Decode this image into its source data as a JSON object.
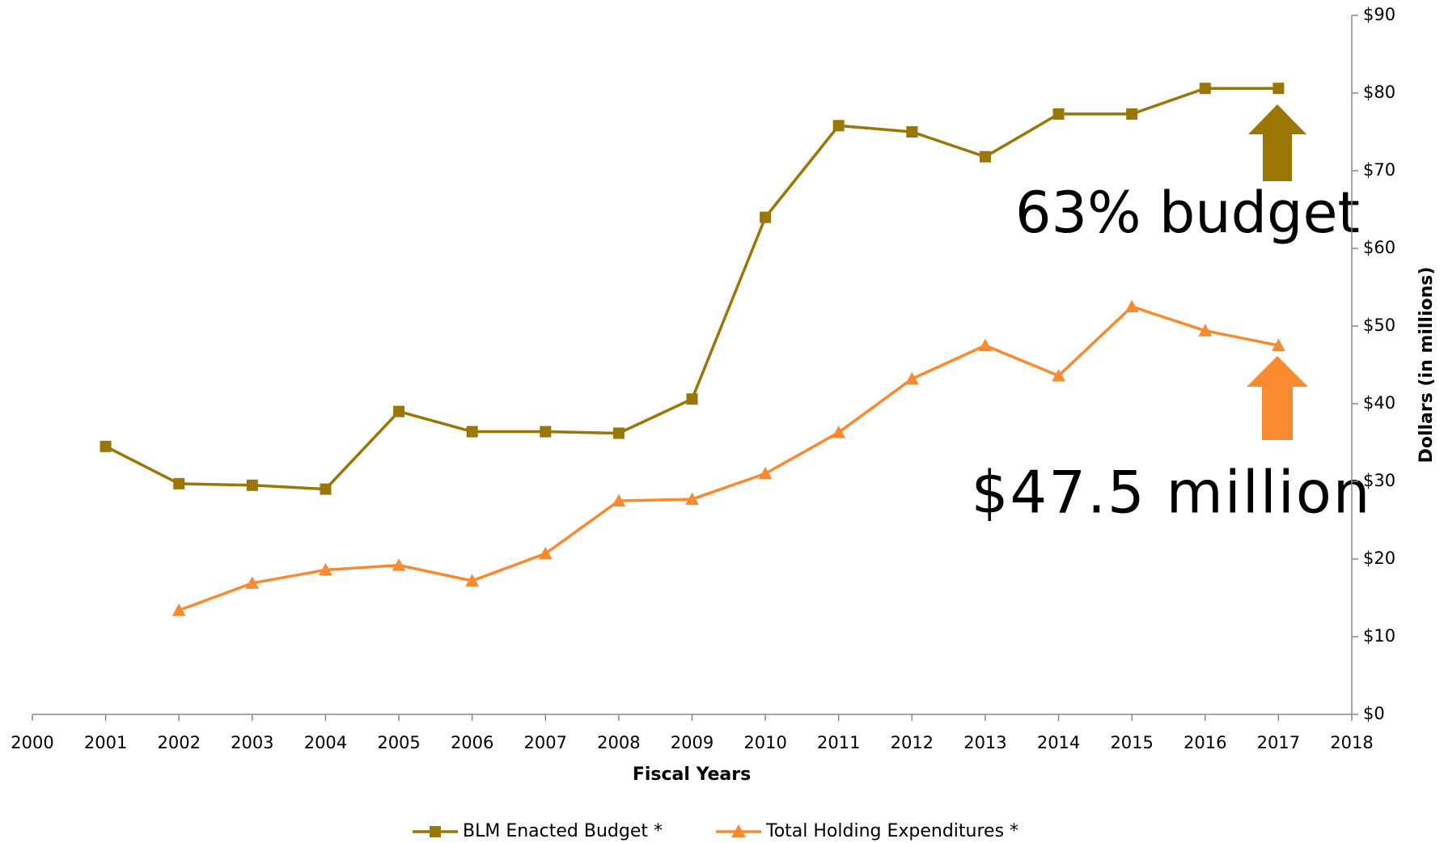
{
  "chart_data": {
    "type": "line",
    "x": [
      2001,
      2002,
      2003,
      2004,
      2005,
      2006,
      2007,
      2008,
      2009,
      2010,
      2011,
      2012,
      2013,
      2014,
      2015,
      2016,
      2017
    ],
    "series": [
      {
        "name": "BLM Enacted Budget *",
        "color": "#9a7604",
        "marker": "square",
        "values": [
          34.5,
          29.7,
          29.5,
          29.0,
          39.0,
          36.4,
          36.4,
          36.2,
          40.6,
          64.0,
          75.8,
          75.0,
          71.8,
          77.3,
          77.3,
          80.6,
          80.6
        ]
      },
      {
        "name": "Total Holding Expenditures *",
        "color": "#fa8a30",
        "marker": "triangle",
        "values": [
          null,
          13.4,
          16.9,
          18.6,
          19.2,
          17.2,
          20.7,
          27.5,
          27.7,
          31.0,
          36.3,
          43.2,
          47.5,
          43.6,
          52.5,
          49.4,
          47.5
        ]
      }
    ],
    "x_label": "Fiscal Years",
    "y_label": "Dollars (in millions)",
    "xlim": [
      2000,
      2018
    ],
    "xticks": [
      2000,
      2001,
      2002,
      2003,
      2004,
      2005,
      2006,
      2007,
      2008,
      2009,
      2010,
      2011,
      2012,
      2013,
      2014,
      2015,
      2016,
      2017,
      2018
    ],
    "ylim": [
      0,
      90
    ],
    "yticks": [
      {
        "value": 0,
        "label": "$0"
      },
      {
        "value": 10,
        "label": "$10"
      },
      {
        "value": 20,
        "label": "$20"
      },
      {
        "value": 30,
        "label": "$30"
      },
      {
        "value": 40,
        "label": "$40"
      },
      {
        "value": 50,
        "label": "$50"
      },
      {
        "value": 60,
        "label": "$60"
      },
      {
        "value": 70,
        "label": "$70"
      },
      {
        "value": 80,
        "label": "$80"
      },
      {
        "value": 90,
        "label": "$90"
      }
    ],
    "annotations": [
      "63% budget",
      "$47.5 million"
    ],
    "legend": "bottom"
  }
}
